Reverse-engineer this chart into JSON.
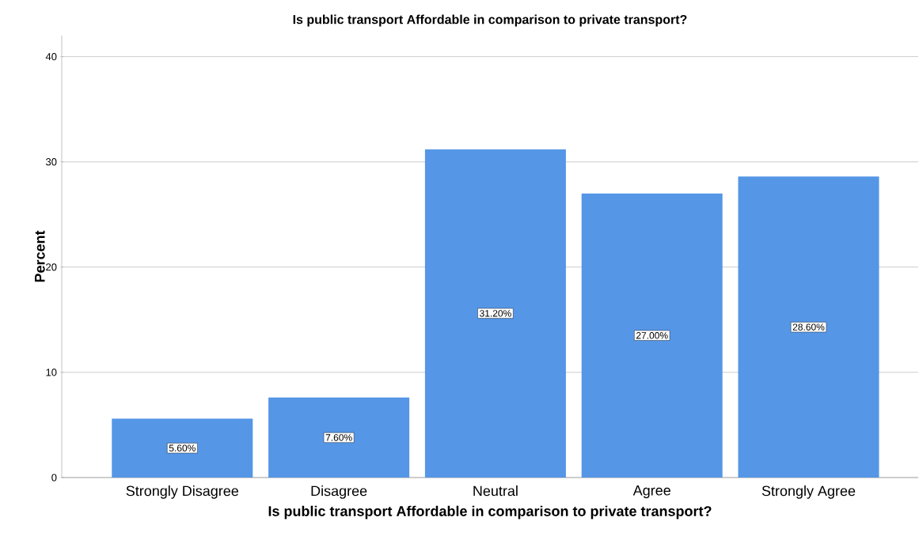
{
  "chart_data": {
    "type": "bar",
    "title": "Is public transport Affordable in comparison to private transport?",
    "xlabel": "Is public transport Affordable in comparison to private transport?",
    "ylabel": "Percent",
    "categories": [
      "Strongly Disagree",
      "Disagree",
      "Neutral",
      "Agree",
      "Strongly Agree"
    ],
    "values": [
      5.6,
      7.6,
      31.2,
      27.0,
      28.6
    ],
    "value_labels": [
      "5.60%",
      "7.60%",
      "31.20%",
      "27.00%",
      "28.60%"
    ],
    "color": "#5596e6",
    "ylim": [
      0,
      42
    ],
    "yticks": [
      0,
      10,
      20,
      30,
      40
    ],
    "grid": "y"
  }
}
